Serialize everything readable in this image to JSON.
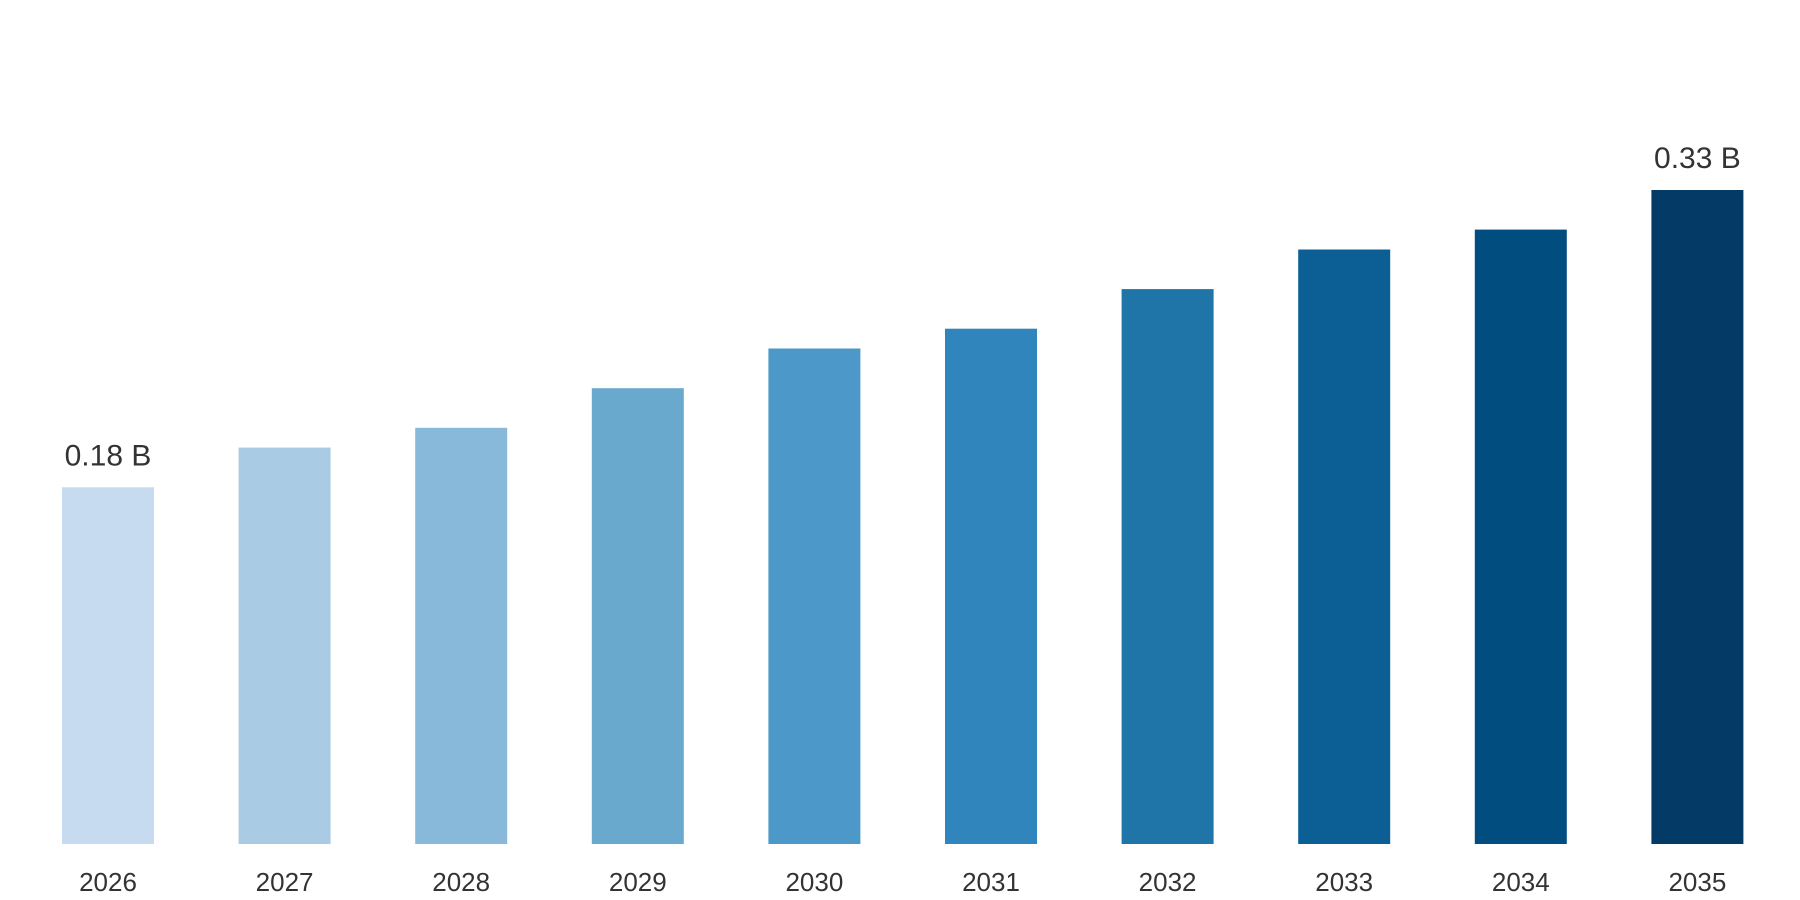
{
  "chart_data": {
    "type": "bar",
    "categories": [
      "2026",
      "2027",
      "2028",
      "2029",
      "2030",
      "2031",
      "2032",
      "2033",
      "2034",
      "2035"
    ],
    "values": [
      0.18,
      0.2,
      0.21,
      0.23,
      0.25,
      0.26,
      0.28,
      0.3,
      0.31,
      0.33
    ],
    "data_labels": [
      {
        "index": 0,
        "text": "0.18 B"
      },
      {
        "index": 9,
        "text": "0.33 B"
      }
    ],
    "unit": "B",
    "ylim": [
      0,
      0.38
    ],
    "grid": false,
    "legend": "none",
    "colors": [
      "#c6dbef",
      "#a9cbe3",
      "#89b9da",
      "#6aa9ce",
      "#4c98c8",
      "#3086bc",
      "#1f74a8",
      "#0b5f94",
      "#024d7f",
      "#033b66"
    ]
  }
}
